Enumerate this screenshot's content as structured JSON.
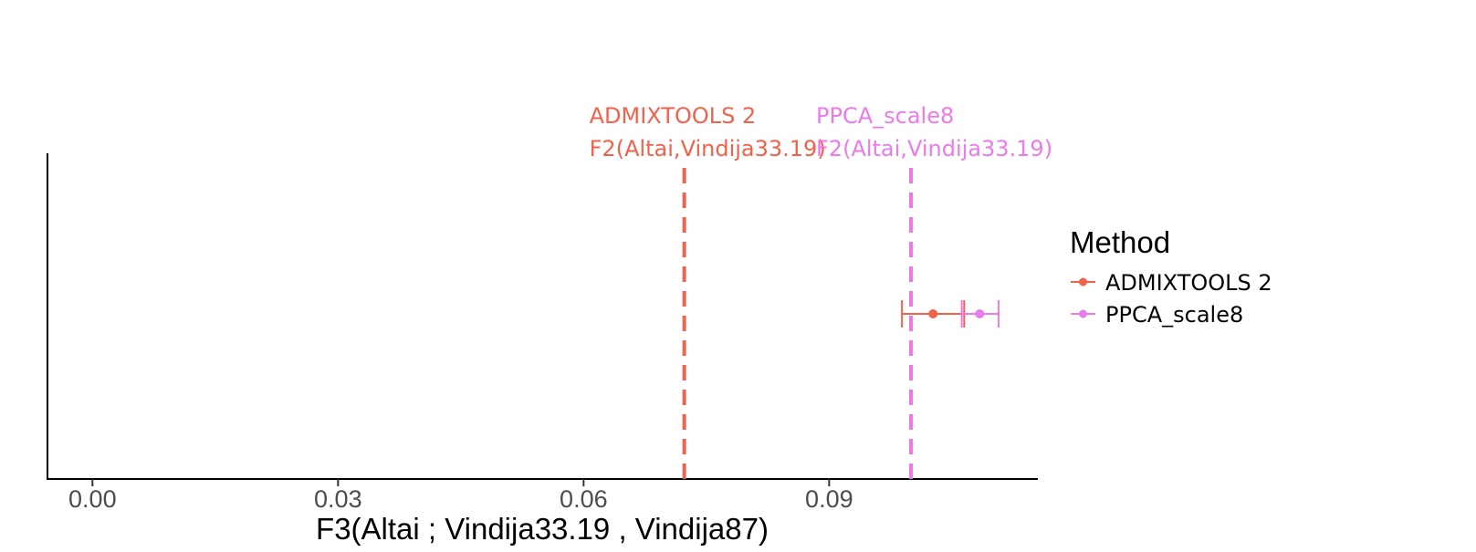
{
  "chart_data": {
    "type": "scatter",
    "xlabel": "F3(Altai ; Vindija33.19 , Vindija87)",
    "ylabel": "",
    "xlim": [
      -0.0055,
      0.1155
    ],
    "x_ticks": [
      0.0,
      0.03,
      0.06,
      0.09
    ],
    "x_tick_labels": [
      "0.00",
      "0.03",
      "0.06",
      "0.09"
    ],
    "grid": false,
    "legend": {
      "title": "Method",
      "position": "right",
      "entries": [
        "ADMIXTOOLS 2",
        "PPCA_scale8"
      ]
    },
    "series": [
      {
        "name": "ADMIXTOOLS 2",
        "color": "#F0624B",
        "value": 0.1027,
        "ci": [
          0.0989,
          0.1065
        ]
      },
      {
        "name": "PPCA_scale8",
        "color": "#EB7AEB",
        "value": 0.1084,
        "ci": [
          0.1062,
          0.1107
        ]
      }
    ],
    "reference_lines": [
      {
        "x": 0.0723,
        "color": "#F0624B",
        "label_line1": "ADMIXTOOLS 2",
        "label_line2": "F2(Altai,Vindija33.19)"
      },
      {
        "x": 0.1,
        "color": "#EB7AEB",
        "label_line1": "PPCA_scale8",
        "label_line2": "F2(Altai,Vindija33.19)"
      }
    ]
  }
}
